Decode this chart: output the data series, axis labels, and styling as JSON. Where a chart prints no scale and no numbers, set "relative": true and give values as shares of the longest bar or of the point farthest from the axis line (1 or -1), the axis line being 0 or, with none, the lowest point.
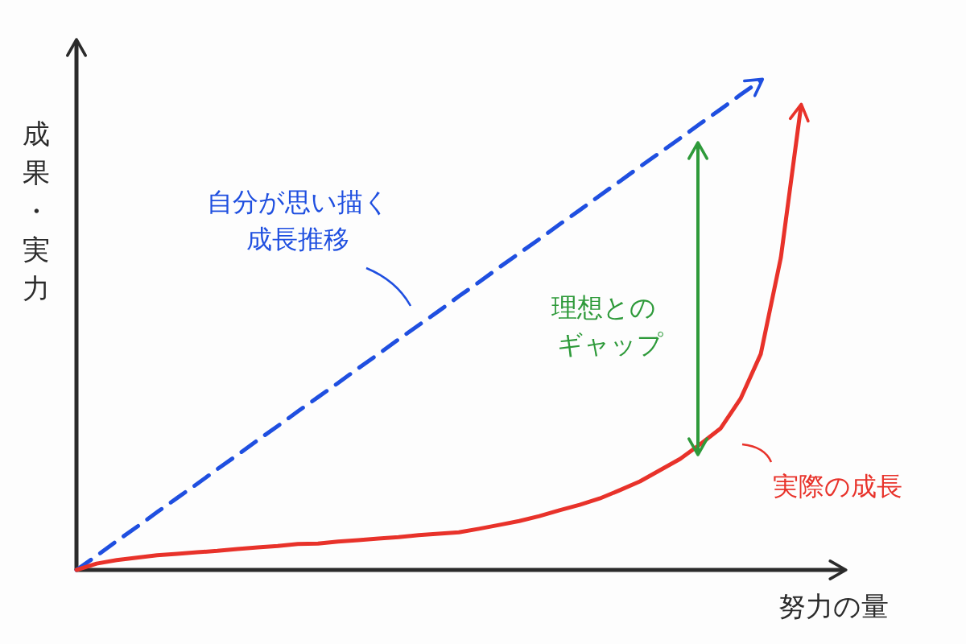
{
  "chart_data": {
    "type": "line",
    "relative": true,
    "xlabel": "努力の量",
    "ylabel": "成果・実力",
    "categories": [
      null,
      null,
      null,
      null,
      null,
      null,
      null,
      null,
      null,
      null,
      null,
      null,
      null,
      null,
      null,
      null,
      null,
      null,
      null,
      null,
      null,
      null,
      null,
      null,
      null,
      null,
      null,
      null,
      null,
      null,
      null,
      null,
      null,
      null,
      null,
      null,
      null
    ],
    "series": [
      {
        "name": "自分が思い描く成長推移",
        "color": "#1f4fe0",
        "line_style": "dashed",
        "values": [
          0,
          0.029,
          0.059,
          0.088,
          0.118,
          0.147,
          0.176,
          0.206,
          0.235,
          0.265,
          0.294,
          0.324,
          0.353,
          0.382,
          0.412,
          0.441,
          0.471,
          0.5,
          0.529,
          0.559,
          0.588,
          0.618,
          0.647,
          0.676,
          0.706,
          0.735,
          0.765,
          0.794,
          0.824,
          0.853,
          0.882,
          0.912,
          0.941,
          0.971,
          1,
          null,
          null
        ]
      },
      {
        "name": "実際の成長",
        "color": "#e8322a",
        "line_style": "solid",
        "values": [
          0,
          0.013,
          0.02,
          0.025,
          0.03,
          0.033,
          0.036,
          0.039,
          0.043,
          0.046,
          0.049,
          0.053,
          0.054,
          0.058,
          0.061,
          0.064,
          0.067,
          0.071,
          0.074,
          0.077,
          0.084,
          0.092,
          0.1,
          0.11,
          0.122,
          0.133,
          0.146,
          0.163,
          0.181,
          0.204,
          0.227,
          0.257,
          0.289,
          0.35,
          0.441,
          0.638,
          0.947
        ]
      }
    ],
    "annotations": [
      "理想とのギャップ"
    ],
    "grid": false,
    "marker": "none"
  }
}
